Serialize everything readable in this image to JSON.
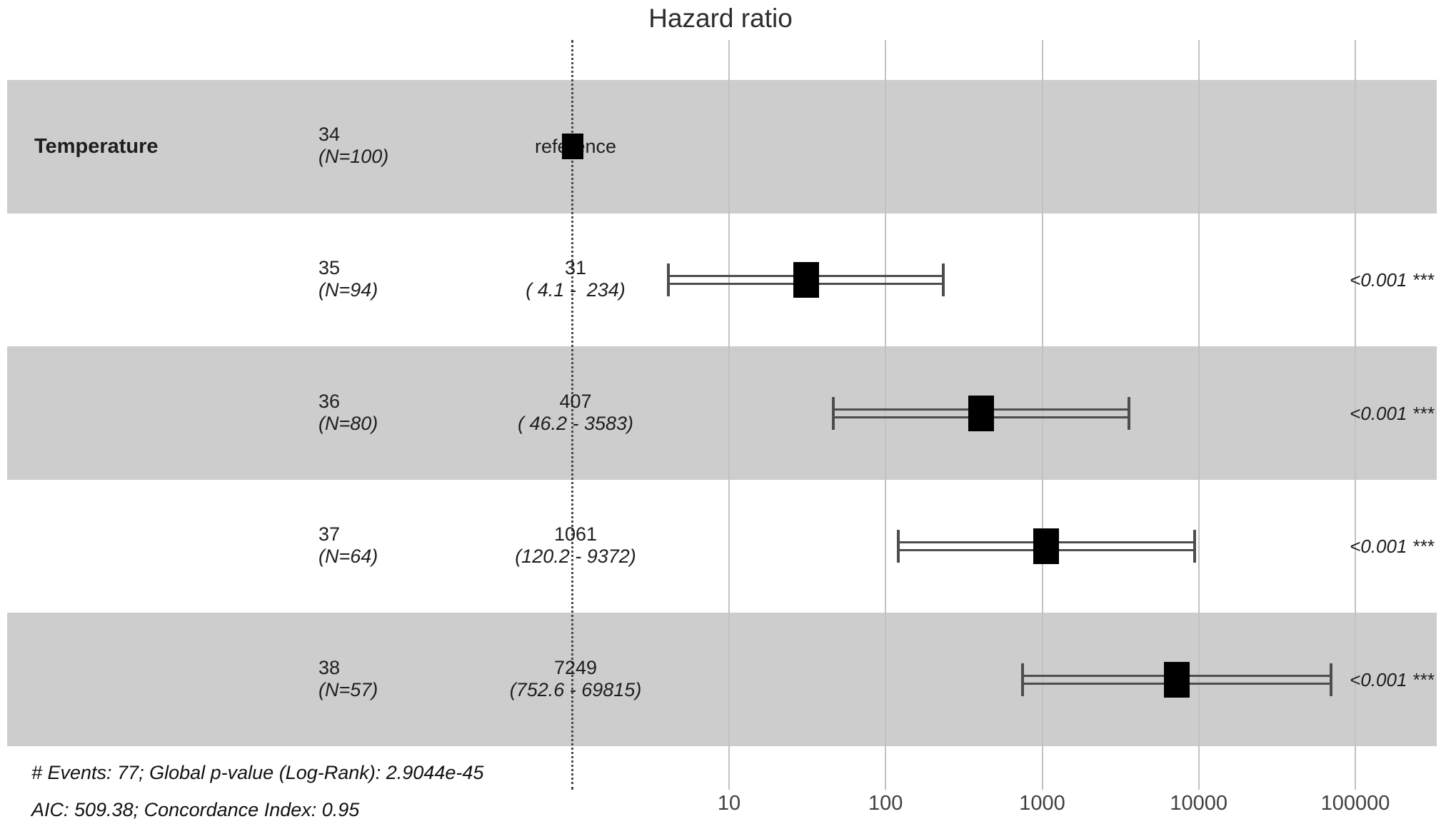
{
  "chart_data": {
    "type": "scatter",
    "subtype": "forest-plot-hazard-ratio",
    "title": "Hazard ratio",
    "x_scale": "log10",
    "x_ticks": [
      "10",
      "100",
      "1000",
      "10000",
      "100000"
    ],
    "x_tick_values": [
      10,
      100,
      1000,
      10000,
      100000
    ],
    "reference_value": 1,
    "variable": "Temperature",
    "rows": [
      {
        "level": "34",
        "n_label": "(N=100)",
        "estimate_label": "reference",
        "hr": 1,
        "ci_low": null,
        "ci_high": null,
        "ci_label": "",
        "p_label": ""
      },
      {
        "level": "35",
        "n_label": "(N=94)",
        "estimate_label": "31",
        "hr": 31,
        "ci_low": 4.1,
        "ci_high": 234,
        "ci_label": "( 4.1 -  234)",
        "p_label": "<0.001 ***"
      },
      {
        "level": "36",
        "n_label": "(N=80)",
        "estimate_label": "407",
        "hr": 407,
        "ci_low": 46.2,
        "ci_high": 3583,
        "ci_label": "( 46.2 - 3583)",
        "p_label": "<0.001 ***"
      },
      {
        "level": "37",
        "n_label": "(N=64)",
        "estimate_label": "1061",
        "hr": 1061,
        "ci_low": 120.2,
        "ci_high": 9372,
        "ci_label": "(120.2 - 9372)",
        "p_label": "<0.001 ***"
      },
      {
        "level": "38",
        "n_label": "(N=57)",
        "estimate_label": "7249",
        "hr": 7249,
        "ci_low": 752.6,
        "ci_high": 69815,
        "ci_label": "(752.6 - 69815)",
        "p_label": "<0.001 ***"
      }
    ],
    "footnote_line1": "# Events: 77; Global p-value (Log-Rank): 2.9044e-45",
    "footnote_line2": "AIC: 509.38; Concordance Index: 0.95"
  },
  "colors": {
    "band": "#cdcdcd",
    "gridline": "#c2c2c2",
    "reference_line": "#4a4a4a",
    "whisker": "#4d4d4d",
    "marker": "#000000",
    "text": "#1e1e1e"
  }
}
